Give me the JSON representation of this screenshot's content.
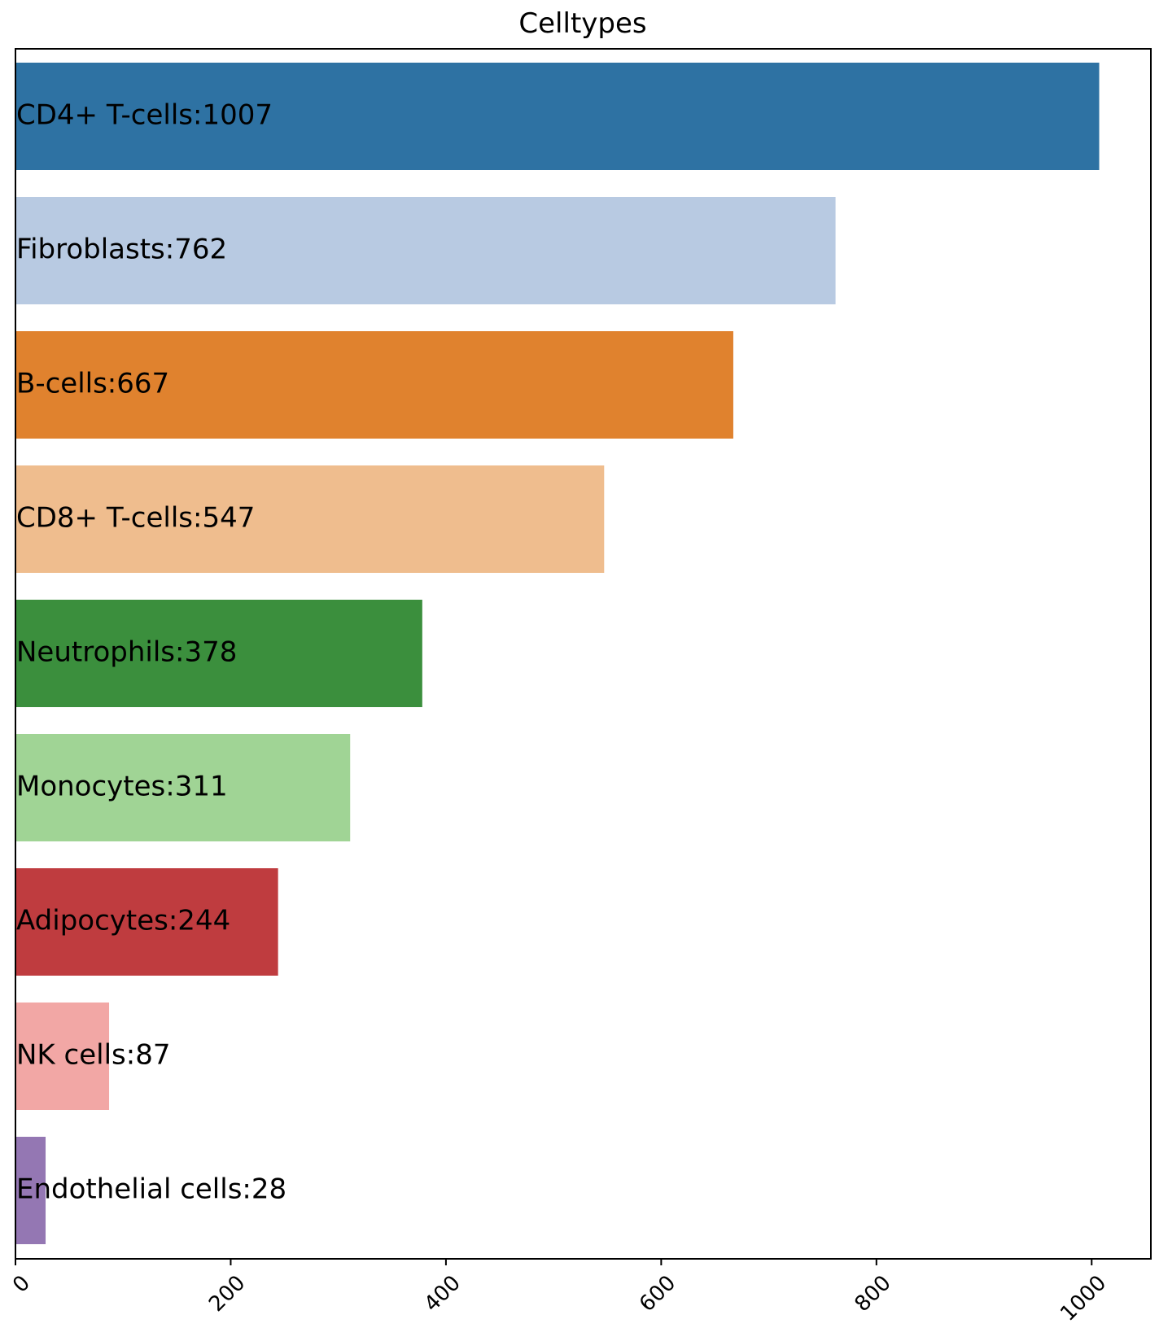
{
  "chart_data": {
    "type": "bar",
    "orientation": "horizontal",
    "title": "Celltypes",
    "xlabel": "",
    "ylabel": "",
    "xlim": [
      0,
      1055
    ],
    "xticks": [
      0,
      200,
      400,
      600,
      800,
      1000
    ],
    "grid": false,
    "legend": "none",
    "bars": [
      {
        "category": "CD4+ T-cells",
        "value": 1007,
        "label": "CD4+ T-cells:1007",
        "color": "#2e72a3"
      },
      {
        "category": "Fibroblasts",
        "value": 762,
        "label": "Fibroblasts:762",
        "color": "#b8cae2"
      },
      {
        "category": "B-cells",
        "value": 667,
        "label": "B-cells:667",
        "color": "#e0822e"
      },
      {
        "category": "CD8+ T-cells",
        "value": 547,
        "label": "CD8+ T-cells:547",
        "color": "#efbd8e"
      },
      {
        "category": "Neutrophils",
        "value": 378,
        "label": "Neutrophils:378",
        "color": "#3b8f3d"
      },
      {
        "category": "Monocytes",
        "value": 311,
        "label": "Monocytes:311",
        "color": "#a0d495"
      },
      {
        "category": "Adipocytes",
        "value": 244,
        "label": "Adipocytes:244",
        "color": "#bf3c3f"
      },
      {
        "category": "NK cells",
        "value": 87,
        "label": "NK cells:87",
        "color": "#f2a7a5"
      },
      {
        "category": "Endothelial cells",
        "value": 28,
        "label": "Endothelial cells:28",
        "color": "#9477b3"
      }
    ]
  }
}
